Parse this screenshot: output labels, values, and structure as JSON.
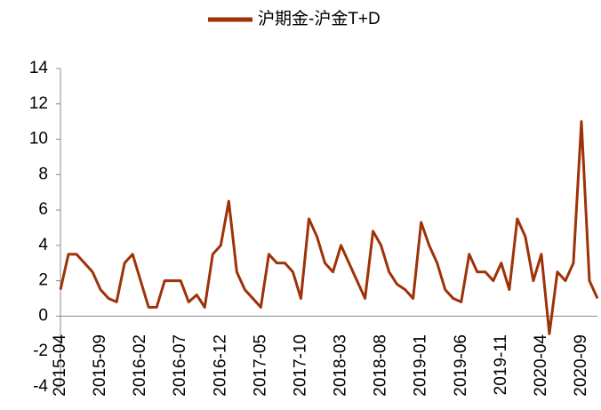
{
  "chart_data": {
    "type": "line",
    "categories": [
      "2015-04",
      null,
      null,
      null,
      null,
      "2015-09",
      null,
      null,
      null,
      null,
      "2016-02",
      null,
      null,
      null,
      null,
      "2016-07",
      null,
      null,
      null,
      null,
      "2016-12",
      null,
      null,
      null,
      null,
      "2017-05",
      null,
      null,
      null,
      null,
      "2017-10",
      null,
      null,
      null,
      null,
      "2018-03",
      null,
      null,
      null,
      null,
      "2018-08",
      null,
      null,
      null,
      null,
      "2019-01",
      null,
      null,
      null,
      null,
      "2019-06",
      null,
      null,
      null,
      null,
      "2019-11",
      null,
      null,
      null,
      null,
      "2020-04",
      null,
      null,
      null,
      null,
      "2020-09",
      null,
      null
    ],
    "series": [
      {
        "name": "沪期金-沪金T+D",
        "color": "#9e3208",
        "values": [
          1.5,
          3.5,
          3.5,
          3.0,
          2.5,
          1.5,
          1.0,
          0.8,
          3.0,
          3.5,
          2.0,
          0.5,
          0.5,
          2.0,
          2.0,
          2.0,
          0.8,
          1.2,
          0.5,
          3.5,
          4.0,
          6.5,
          2.5,
          1.5,
          1.0,
          0.5,
          3.5,
          3.0,
          3.0,
          2.5,
          1.0,
          5.5,
          4.5,
          3.0,
          2.5,
          4.0,
          3.0,
          2.0,
          1.0,
          4.8,
          4.0,
          2.5,
          1.8,
          1.5,
          1.0,
          5.3,
          4.0,
          3.0,
          1.5,
          1.0,
          0.8,
          3.5,
          2.5,
          2.5,
          2.0,
          3.0,
          1.5,
          5.5,
          4.5,
          2.0,
          3.5,
          -1.0,
          2.5,
          2.0,
          3.0,
          11.0,
          2.0,
          1.0
        ]
      }
    ],
    "ylim": [
      -4,
      14
    ],
    "yticks": [
      -4,
      -2,
      0,
      2,
      4,
      6,
      8,
      10,
      12,
      14
    ],
    "grid": false,
    "legend": "top"
  }
}
